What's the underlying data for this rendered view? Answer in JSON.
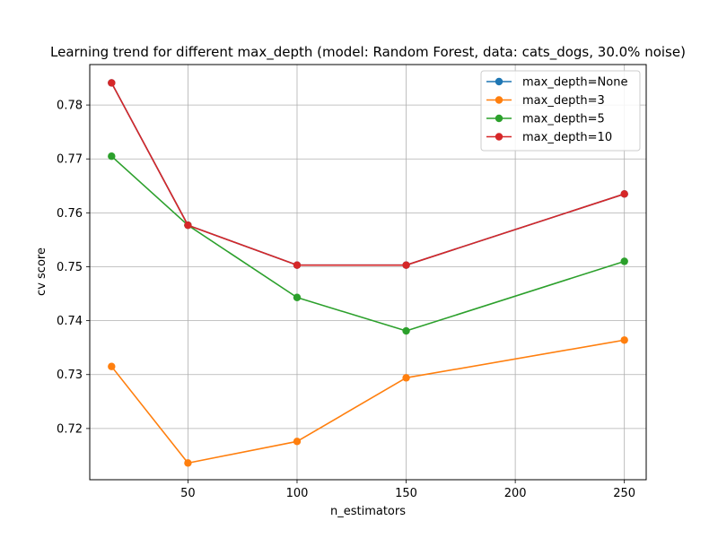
{
  "chart_data": {
    "type": "line",
    "title": "Learning trend for different max_depth (model: Random Forest, data: cats_dogs, 30.0% noise)",
    "xlabel": "n_estimators",
    "ylabel": "cv score",
    "x": [
      15,
      50,
      100,
      150,
      250
    ],
    "xlim": [
      5,
      260
    ],
    "ylim": [
      0.7105,
      0.7875
    ],
    "xticks": [
      50,
      100,
      150,
      200,
      250
    ],
    "yticks": [
      0.72,
      0.73,
      0.74,
      0.75,
      0.76,
      0.77,
      0.78
    ],
    "grid": true,
    "legend_position": "top-right",
    "series": [
      {
        "name": "max_depth=None",
        "color": "#1f77b4",
        "values": [
          0.7841,
          0.7577,
          0.7503,
          0.7503,
          0.7635
        ]
      },
      {
        "name": "max_depth=3",
        "color": "#ff7f0e",
        "values": [
          0.7315,
          0.7136,
          0.7176,
          0.7294,
          0.7364
        ]
      },
      {
        "name": "max_depth=5",
        "color": "#2ca02c",
        "values": [
          0.7705,
          0.7577,
          0.7443,
          0.7381,
          0.751
        ]
      },
      {
        "name": "max_depth=10",
        "color": "#d62728",
        "values": [
          0.7841,
          0.7577,
          0.7503,
          0.7503,
          0.7635
        ]
      }
    ]
  }
}
